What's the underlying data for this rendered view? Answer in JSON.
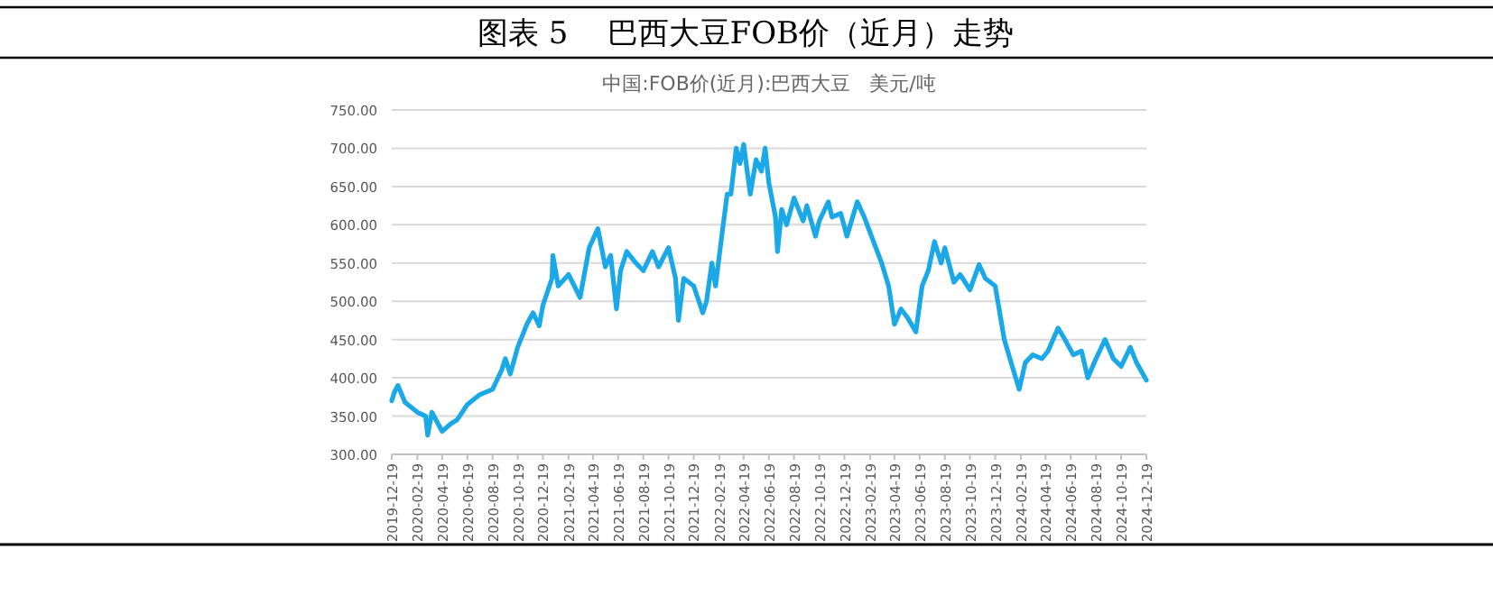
{
  "chart_data": {
    "type": "line",
    "title": "图表 5    巴西大豆FOB价（近月）走势",
    "subtitle": "中国:FOB价(近月):巴西大豆   美元/吨",
    "x": [
      "2019-12-19",
      "2019-12-26",
      "2020-01-03",
      "2020-01-20",
      "2020-02-19",
      "2020-03-10",
      "2020-03-15",
      "2020-03-25",
      "2020-04-19",
      "2020-05-10",
      "2020-05-25",
      "2020-06-19",
      "2020-07-19",
      "2020-08-19",
      "2020-09-10",
      "2020-09-19",
      "2020-10-01",
      "2020-10-19",
      "2020-11-10",
      "2020-11-25",
      "2020-12-10",
      "2020-12-19",
      "2021-01-10",
      "2021-01-12",
      "2021-01-25",
      "2021-02-19",
      "2021-03-19",
      "2021-04-10",
      "2021-05-01",
      "2021-05-19",
      "2021-06-01",
      "2021-06-15",
      "2021-06-25",
      "2021-07-10",
      "2021-08-01",
      "2021-08-19",
      "2021-09-10",
      "2021-09-25",
      "2021-10-19",
      "2021-11-05",
      "2021-11-12",
      "2021-11-25",
      "2021-12-19",
      "2022-01-10",
      "2022-01-19",
      "2022-02-01",
      "2022-02-10",
      "2022-02-19",
      "2022-03-10",
      "2022-03-19",
      "2022-04-01",
      "2022-04-10",
      "2022-04-19",
      "2022-05-05",
      "2022-05-19",
      "2022-06-01",
      "2022-06-10",
      "2022-06-19",
      "2022-07-05",
      "2022-07-10",
      "2022-07-20",
      "2022-08-01",
      "2022-08-19",
      "2022-09-10",
      "2022-09-19",
      "2022-10-10",
      "2022-10-19",
      "2022-11-10",
      "2022-11-19",
      "2022-12-10",
      "2022-12-25",
      "2023-01-19",
      "2023-02-05",
      "2023-02-19",
      "2023-03-19",
      "2023-04-05",
      "2023-04-19",
      "2023-05-05",
      "2023-05-19",
      "2023-06-10",
      "2023-06-25",
      "2023-07-10",
      "2023-07-25",
      "2023-08-10",
      "2023-08-19",
      "2023-09-10",
      "2023-09-25",
      "2023-10-19",
      "2023-11-10",
      "2023-11-25",
      "2023-12-19",
      "2024-01-10",
      "2024-02-01",
      "2024-02-15",
      "2024-03-01",
      "2024-03-19",
      "2024-04-10",
      "2024-04-25",
      "2024-05-19",
      "2024-06-05",
      "2024-06-25",
      "2024-07-15",
      "2024-07-30",
      "2024-08-19",
      "2024-09-10",
      "2024-09-30",
      "2024-10-19",
      "2024-11-10",
      "2024-11-25",
      "2024-12-19"
    ],
    "series": [
      {
        "color": "#1ba8e8",
        "values": [
          370,
          382,
          390,
          368,
          355,
          350,
          325,
          355,
          330,
          340,
          345,
          365,
          378,
          385,
          410,
          425,
          405,
          440,
          470,
          485,
          468,
          495,
          530,
          560,
          520,
          535,
          505,
          570,
          595,
          545,
          560,
          490,
          540,
          565,
          550,
          540,
          565,
          545,
          570,
          530,
          475,
          530,
          520,
          485,
          500,
          550,
          520,
          560,
          640,
          640,
          700,
          680,
          705,
          640,
          685,
          670,
          700,
          655,
          610,
          565,
          620,
          600,
          635,
          605,
          625,
          585,
          605,
          630,
          610,
          615,
          585,
          630,
          610,
          590,
          550,
          520,
          470,
          490,
          480,
          460,
          520,
          540,
          578,
          550,
          570,
          525,
          535,
          515,
          548,
          530,
          520,
          450,
          410,
          385,
          420,
          430,
          425,
          435,
          465,
          450,
          430,
          435,
          400,
          425,
          450,
          425,
          415,
          440,
          420,
          397
        ]
      }
    ],
    "xlim": [
      "2019-12-19",
      "2024-12-19"
    ],
    "xticks": [
      "2019-12-19",
      "2020-02-19",
      "2020-04-19",
      "2020-06-19",
      "2020-08-19",
      "2020-10-19",
      "2020-12-19",
      "2021-02-19",
      "2021-04-19",
      "2021-06-19",
      "2021-08-19",
      "2021-10-19",
      "2021-12-19",
      "2022-02-19",
      "2022-04-19",
      "2022-06-19",
      "2022-08-19",
      "2022-10-19",
      "2022-12-19",
      "2023-02-19",
      "2023-04-19",
      "2023-06-19",
      "2023-08-19",
      "2023-10-19",
      "2023-12-19",
      "2024-02-19",
      "2024-04-19",
      "2024-06-19",
      "2024-08-19",
      "2024-10-19",
      "2024-12-19"
    ],
    "ylim": [
      300,
      750
    ],
    "yticks": [
      {
        "value": 300,
        "label": "300.00"
      },
      {
        "value": 350,
        "label": "350.00"
      },
      {
        "value": 400,
        "label": "400.00"
      },
      {
        "value": 450,
        "label": "450.00"
      },
      {
        "value": 500,
        "label": "500.00"
      },
      {
        "value": 550,
        "label": "550.00"
      },
      {
        "value": 600,
        "label": "600.00"
      },
      {
        "value": 650,
        "label": "650.00"
      },
      {
        "value": 700,
        "label": "700.00"
      },
      {
        "value": 750,
        "label": "750.00"
      }
    ],
    "grid": "y",
    "marker": "none",
    "line_style": "solid"
  }
}
